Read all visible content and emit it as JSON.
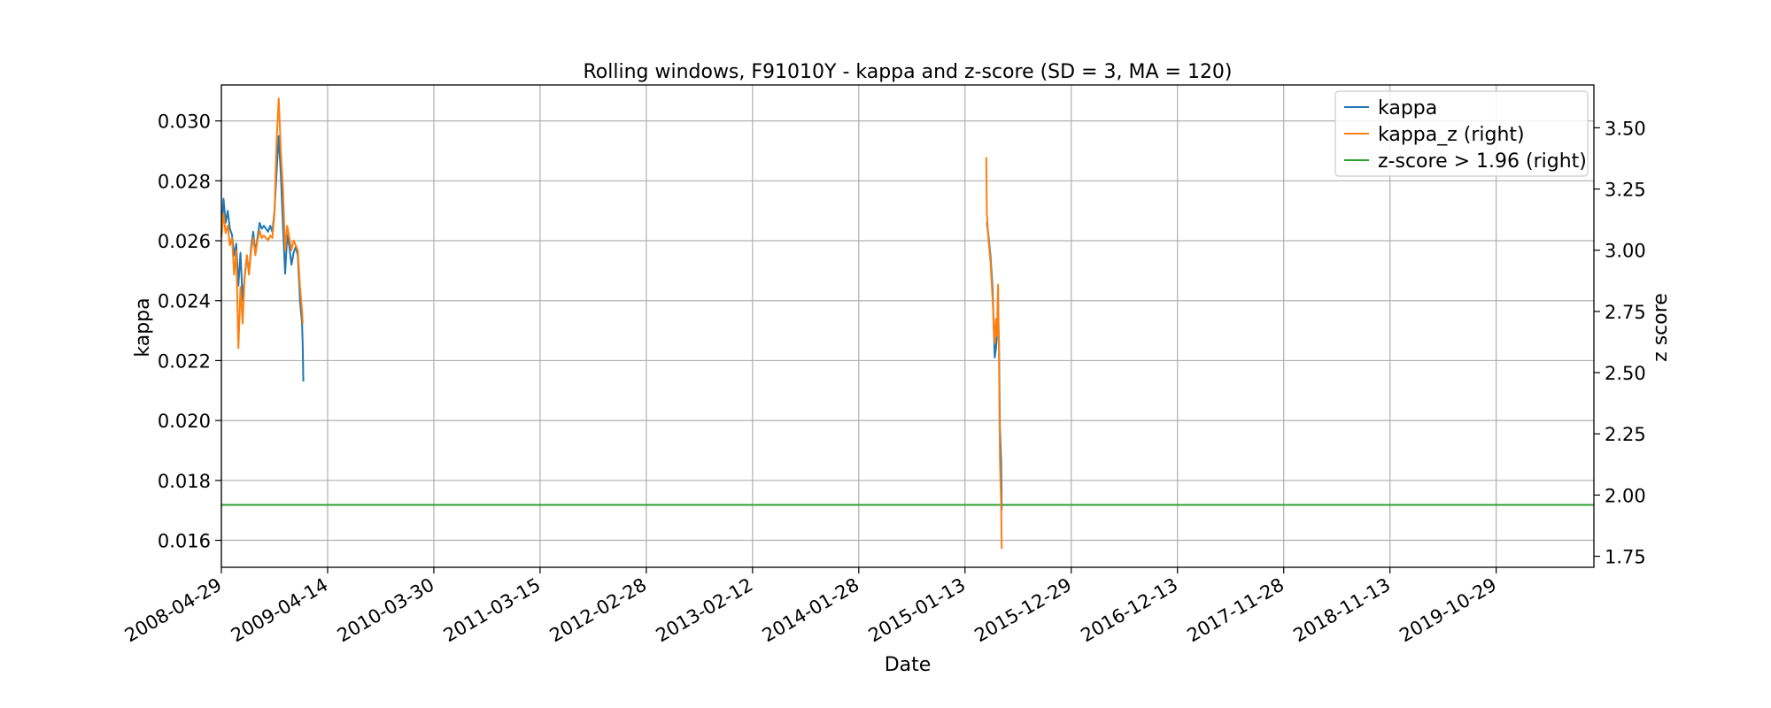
{
  "chart_data": {
    "type": "line",
    "title": "Rolling windows, F91010Y - kappa and z-score (SD = 3, MA = 120)",
    "xlabel": "Date",
    "ylabel": "kappa",
    "ylabel_right": "z score",
    "x_ticks": [
      "2008-04-29",
      "2009-04-14",
      "2010-03-30",
      "2011-03-15",
      "2012-02-28",
      "2013-02-12",
      "2014-01-28",
      "2015-01-13",
      "2015-12-29",
      "2016-12-13",
      "2017-11-28",
      "2018-11-13",
      "2019-10-29"
    ],
    "xlim": [
      "2008-04-29",
      "2020-09-15"
    ],
    "ylim": [
      0.0151,
      0.0312
    ],
    "y_ticks": [
      0.016,
      0.018,
      0.02,
      0.022,
      0.024,
      0.026,
      0.028,
      0.03
    ],
    "y_ticks_labels": [
      "0.016",
      "0.018",
      "0.020",
      "0.022",
      "0.024",
      "0.026",
      "0.028",
      "0.030"
    ],
    "ylim_right": [
      1.705,
      3.675
    ],
    "y_ticks_right": [
      1.75,
      2.0,
      2.25,
      2.5,
      2.75,
      3.0,
      3.25,
      3.5
    ],
    "y_ticks_right_labels": [
      "1.75",
      "2.00",
      "2.25",
      "2.50",
      "2.75",
      "3.00",
      "3.25",
      "3.50"
    ],
    "grid": true,
    "legend_position": "top-right",
    "series": [
      {
        "name": "kappa",
        "axis": "left",
        "color": "#1f77b4",
        "segments": [
          [
            [
              "2008-04-29",
              0.0262
            ],
            [
              "2008-05-06",
              0.0274
            ],
            [
              "2008-05-13",
              0.0266
            ],
            [
              "2008-05-20",
              0.027
            ],
            [
              "2008-05-27",
              0.0264
            ],
            [
              "2008-06-03",
              0.0262
            ],
            [
              "2008-06-10",
              0.0255
            ],
            [
              "2008-06-17",
              0.0259
            ],
            [
              "2008-06-24",
              0.0245
            ],
            [
              "2008-07-01",
              0.0256
            ],
            [
              "2008-07-08",
              0.024
            ],
            [
              "2008-07-15",
              0.0248
            ],
            [
              "2008-07-22",
              0.0255
            ],
            [
              "2008-07-29",
              0.0249
            ],
            [
              "2008-08-05",
              0.0258
            ],
            [
              "2008-08-12",
              0.0263
            ],
            [
              "2008-08-19",
              0.0256
            ],
            [
              "2008-08-26",
              0.0261
            ],
            [
              "2008-09-02",
              0.0266
            ],
            [
              "2008-09-09",
              0.0264
            ],
            [
              "2008-09-16",
              0.0265
            ],
            [
              "2008-09-23",
              0.0264
            ],
            [
              "2008-09-30",
              0.0263
            ],
            [
              "2008-10-07",
              0.0265
            ],
            [
              "2008-10-14",
              0.0263
            ],
            [
              "2008-10-21",
              0.027
            ],
            [
              "2008-10-28",
              0.0283
            ],
            [
              "2008-11-04",
              0.0295
            ],
            [
              "2008-11-11",
              0.0282
            ],
            [
              "2008-11-18",
              0.0265
            ],
            [
              "2008-11-25",
              0.0249
            ],
            [
              "2008-12-02",
              0.0262
            ],
            [
              "2008-12-09",
              0.0258
            ],
            [
              "2008-12-16",
              0.0252
            ],
            [
              "2008-12-23",
              0.0256
            ],
            [
              "2008-12-30",
              0.0258
            ],
            [
              "2009-01-06",
              0.0255
            ],
            [
              "2009-01-13",
              0.024
            ],
            [
              "2009-01-20",
              0.0232
            ],
            [
              "2009-01-22",
              0.0225
            ],
            [
              "2009-01-24",
              0.0213
            ]
          ],
          [
            [
              "2015-03-24",
              0.0266
            ],
            [
              "2015-03-26",
              0.0266
            ],
            [
              "2015-03-31",
              0.0262
            ],
            [
              "2015-04-07",
              0.0255
            ],
            [
              "2015-04-14",
              0.0244
            ],
            [
              "2015-04-18",
              0.023
            ],
            [
              "2015-04-21",
              0.0221
            ],
            [
              "2015-04-25",
              0.0224
            ],
            [
              "2015-04-28",
              0.0228
            ],
            [
              "2015-05-02",
              0.0236
            ],
            [
              "2015-05-05",
              0.0226
            ],
            [
              "2015-05-08",
              0.0198
            ],
            [
              "2015-05-12",
              0.0186
            ],
            [
              "2015-05-14",
              0.017
            ]
          ]
        ]
      },
      {
        "name": "kappa_z (right)",
        "axis": "right",
        "color": "#ff7f0e",
        "segments": [
          [
            [
              "2008-04-29",
              3.05
            ],
            [
              "2008-05-06",
              3.15
            ],
            [
              "2008-05-13",
              3.07
            ],
            [
              "2008-05-20",
              3.1
            ],
            [
              "2008-05-27",
              3.02
            ],
            [
              "2008-06-03",
              3.05
            ],
            [
              "2008-06-10",
              2.9
            ],
            [
              "2008-06-17",
              3.0
            ],
            [
              "2008-06-24",
              2.6
            ],
            [
              "2008-07-01",
              2.85
            ],
            [
              "2008-07-08",
              2.7
            ],
            [
              "2008-07-15",
              2.9
            ],
            [
              "2008-07-22",
              2.98
            ],
            [
              "2008-07-29",
              2.9
            ],
            [
              "2008-08-05",
              3.0
            ],
            [
              "2008-08-12",
              3.05
            ],
            [
              "2008-08-19",
              2.98
            ],
            [
              "2008-08-26",
              3.04
            ],
            [
              "2008-09-02",
              3.08
            ],
            [
              "2008-09-09",
              3.05
            ],
            [
              "2008-09-16",
              3.06
            ],
            [
              "2008-09-23",
              3.05
            ],
            [
              "2008-09-30",
              3.04
            ],
            [
              "2008-10-07",
              3.06
            ],
            [
              "2008-10-14",
              3.05
            ],
            [
              "2008-10-21",
              3.15
            ],
            [
              "2008-10-28",
              3.45
            ],
            [
              "2008-11-04",
              3.62
            ],
            [
              "2008-11-11",
              3.4
            ],
            [
              "2008-11-18",
              3.25
            ],
            [
              "2008-11-25",
              3.0
            ],
            [
              "2008-12-02",
              3.1
            ],
            [
              "2008-12-09",
              3.05
            ],
            [
              "2008-12-16",
              3.0
            ],
            [
              "2008-12-23",
              3.04
            ],
            [
              "2008-12-30",
              3.02
            ],
            [
              "2009-01-06",
              3.0
            ],
            [
              "2009-01-13",
              2.85
            ],
            [
              "2009-01-20",
              2.75
            ],
            [
              "2009-01-22",
              2.7
            ]
          ],
          [
            [
              "2015-03-24",
              3.38
            ],
            [
              "2015-03-26",
              3.15
            ],
            [
              "2015-03-31",
              3.05
            ],
            [
              "2015-04-07",
              2.95
            ],
            [
              "2015-04-14",
              2.8
            ],
            [
              "2015-04-18",
              2.68
            ],
            [
              "2015-04-21",
              2.62
            ],
            [
              "2015-04-25",
              2.72
            ],
            [
              "2015-04-28",
              2.65
            ],
            [
              "2015-05-02",
              2.86
            ],
            [
              "2015-05-05",
              2.55
            ],
            [
              "2015-05-08",
              2.15
            ],
            [
              "2015-05-10",
              2.05
            ],
            [
              "2015-05-12",
              1.97
            ],
            [
              "2015-05-14",
              1.78
            ]
          ]
        ]
      },
      {
        "name": "z-score > 1.96 (right)",
        "axis": "right",
        "color": "#2ca02c",
        "constant": 1.96
      }
    ]
  }
}
